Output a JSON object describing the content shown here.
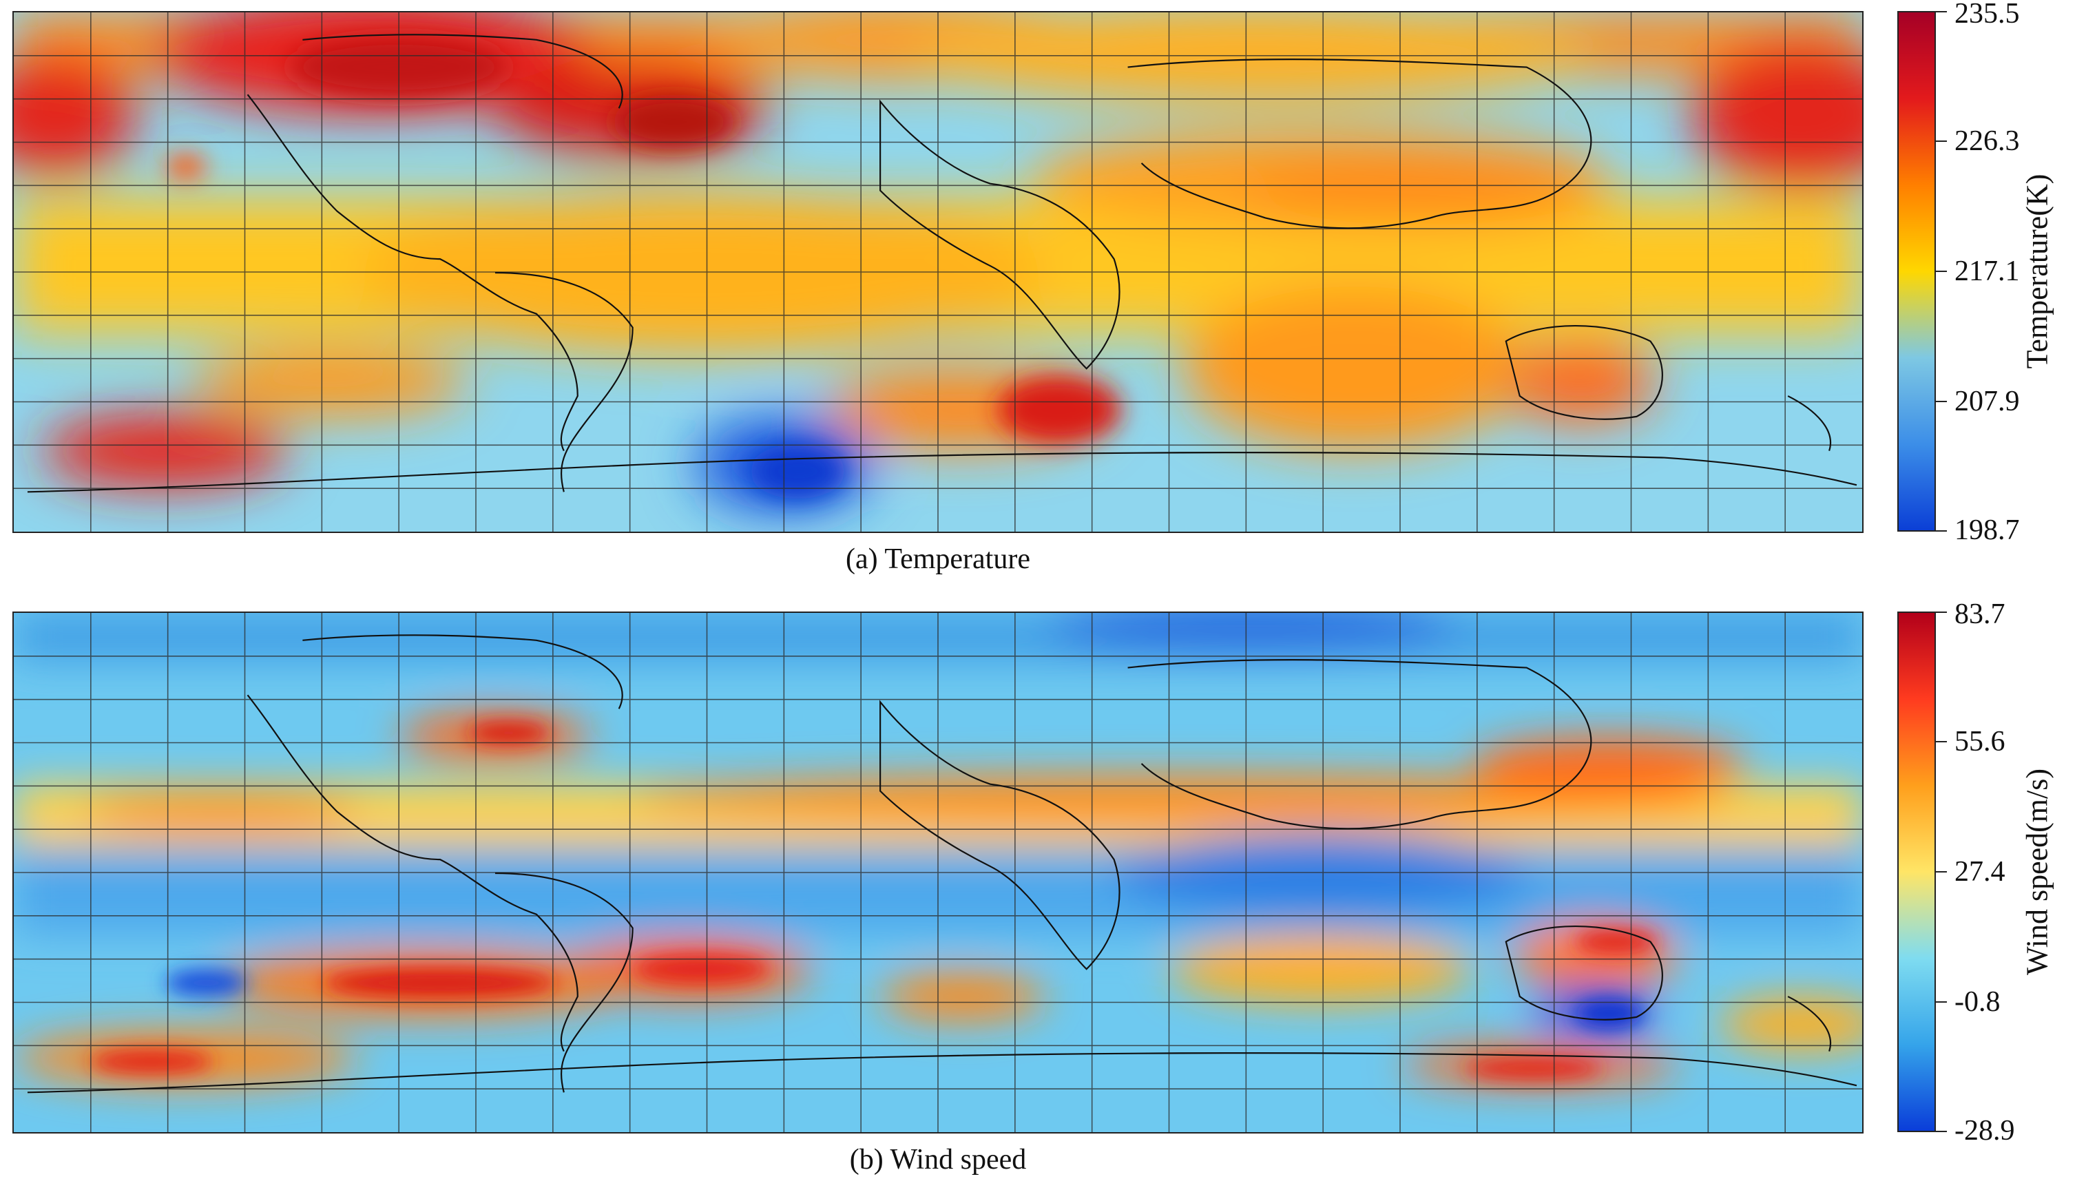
{
  "panels": [
    {
      "caption": "(a) Temperature",
      "colorbar_title": "Temperature(K)",
      "ticks": [
        "235.5",
        "226.3",
        "217.1",
        "207.9",
        "198.7"
      ],
      "colormap": [
        "#a50026",
        "#e31a1c",
        "#ff7f00",
        "#ffd700",
        "#7ec8e3",
        "#3c8ee8",
        "#0b3fd6"
      ]
    },
    {
      "caption": "(b) Wind speed",
      "colorbar_title": "Wind speed(m/s)",
      "ticks": [
        "83.7",
        "55.6",
        "27.4",
        "-0.8",
        "-28.9"
      ],
      "colormap": [
        "#b2001a",
        "#ff3b1f",
        "#ff9f1c",
        "#ffe566",
        "#7fdcf0",
        "#35a4ea",
        "#0a3dd9"
      ]
    }
  ]
}
